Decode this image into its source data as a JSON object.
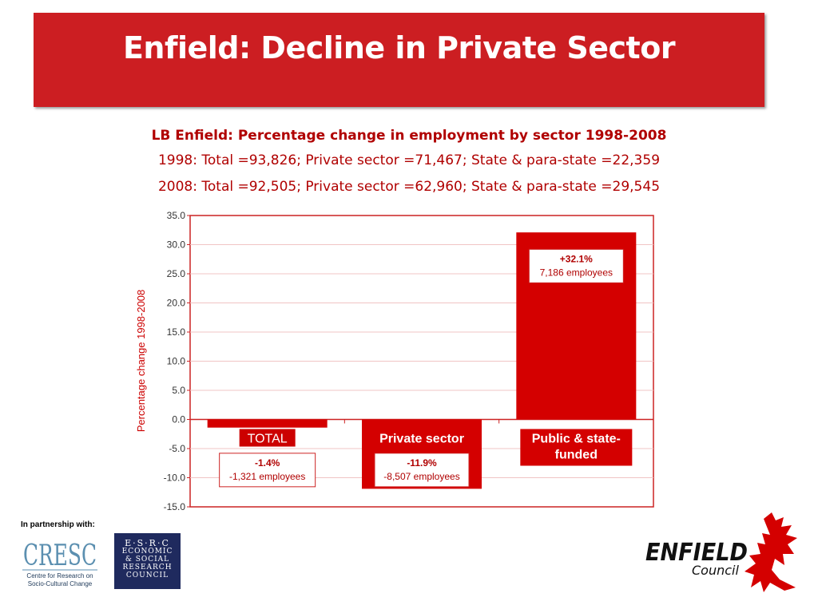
{
  "slide": {
    "title": "Enfield: Decline in Private Sector"
  },
  "chart_data": {
    "type": "bar",
    "title": "LB Enfield: Percentage change in employment by sector 1998-2008",
    "subtitle_lines": [
      "1998: Total =93,826; Private sector =71,467; State & para-state =22,359",
      "2008: Total =92,505; Private sector =62,960; State & para-state =29,545"
    ],
    "categories": [
      "TOTAL",
      "Private sector",
      "Public & state-funded"
    ],
    "values": [
      -1.4,
      -11.9,
      32.1
    ],
    "ylabel": "Percentage change 1998-2008",
    "ylim": [
      -15.0,
      35.0
    ],
    "yticks": [
      "35.0",
      "30.0",
      "25.0",
      "20.0",
      "15.0",
      "10.0",
      "5.0",
      "0.0",
      "-5.0",
      "-10.0",
      "-15.0"
    ],
    "grid": true,
    "bar_color": "#d40000",
    "annotations": [
      {
        "pct": "-1.4%",
        "employees": "-1,321 employees"
      },
      {
        "pct": "-11.9%",
        "employees": "-8,507 employees"
      },
      {
        "pct": "+32.1%",
        "employees": "7,186 employees"
      }
    ]
  },
  "footer": {
    "partnership_label": "In partnership with:",
    "cresc": {
      "mark": "CRESC",
      "line1": "Centre for Research on",
      "line2": "Socio-Cultural Change"
    },
    "esrc": {
      "line1": "E·S·R·C",
      "line2": "ECONOMIC",
      "line3": "& SOCIAL",
      "line4": "RESEARCH",
      "line5": "COUNCIL"
    },
    "enfield": {
      "name": "ENFIELD",
      "council": "Council"
    }
  },
  "colors": {
    "accent": "#cc1e22",
    "bar": "#d40000"
  }
}
